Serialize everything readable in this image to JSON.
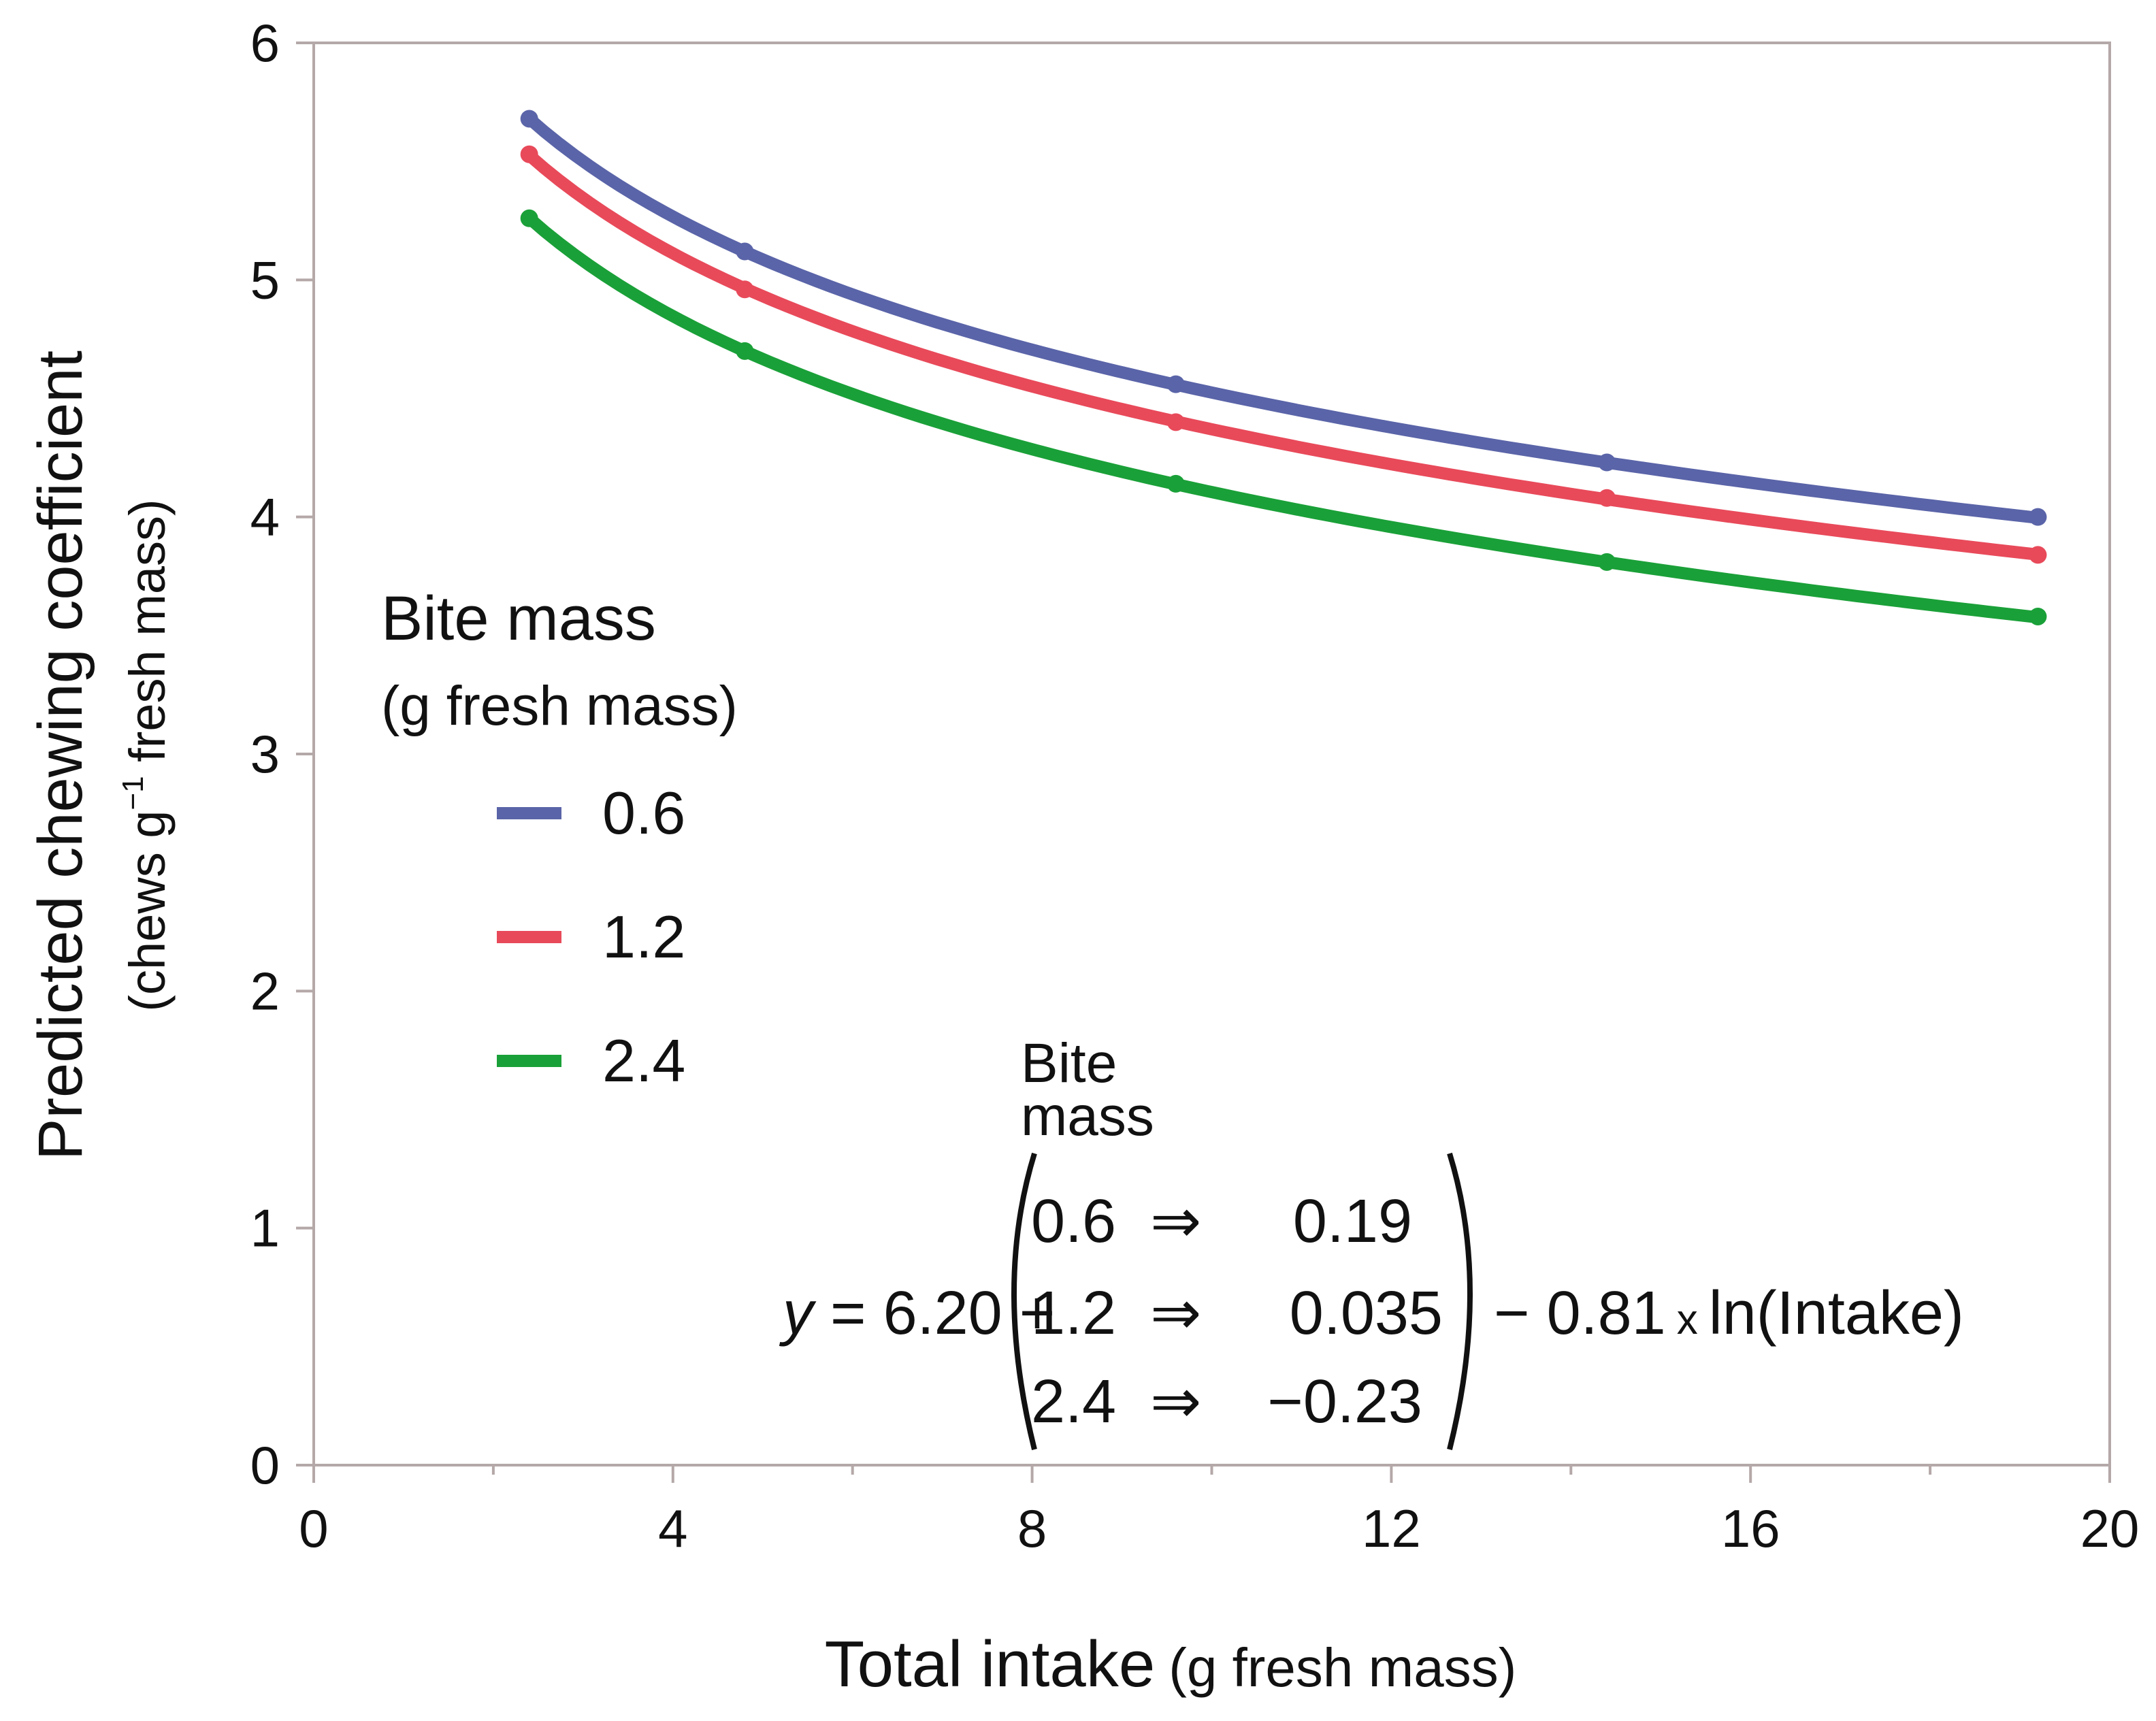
{
  "chart_data": {
    "type": "line",
    "title": "",
    "xlabel": "Total intake",
    "xlabel_unit": "(g fresh mass)",
    "ylabel": "Predicted chewing coefficient",
    "ylabel_unit_pre": "(chews g",
    "ylabel_unit_sup": "−1",
    "ylabel_unit_post": " fresh mass)",
    "xlim": [
      0,
      20
    ],
    "ylim": [
      0,
      6
    ],
    "xticks": [
      "0",
      "4",
      "8",
      "12",
      "16",
      "20"
    ],
    "xtick_values": [
      0,
      4,
      8,
      12,
      16,
      20
    ],
    "xminor_values": [
      2,
      6,
      10,
      14,
      18
    ],
    "yticks": [
      "0",
      "1",
      "2",
      "3",
      "4",
      "5",
      "6"
    ],
    "ytick_values": [
      0,
      1,
      2,
      3,
      4,
      5,
      6
    ],
    "grid": false,
    "legend": {
      "title_line1": "Bite mass",
      "title_line2": "(g fresh mass)",
      "placement": "center-left"
    },
    "x": [
      2.4,
      4.8,
      9.6,
      14.4,
      19.2
    ],
    "model": {
      "intercept": 6.2,
      "slope_ln": -0.81
    },
    "series": [
      {
        "name": "0.6",
        "color": "#5a64a8",
        "offset": 0.19,
        "values": [
          5.68,
          5.12,
          4.56,
          4.23,
          4.0
        ]
      },
      {
        "name": "1.2",
        "color": "#e84a5a",
        "offset": 0.035,
        "values": [
          5.53,
          4.96,
          4.4,
          4.08,
          3.84
        ]
      },
      {
        "name": "2.4",
        "color": "#1aa038",
        "offset": -0.23,
        "values": [
          5.26,
          4.7,
          4.14,
          3.81,
          3.58
        ]
      }
    ],
    "annotation": {
      "header_line1": "Bite",
      "header_line2": "mass",
      "y_var": "y",
      "lhs": " = 6.20 +",
      "rows": [
        {
          "key": "0.6",
          "arrow": "⇒",
          "value": "0.19"
        },
        {
          "key": "1.2",
          "arrow": "⇒",
          "value": "0.035"
        },
        {
          "key": "2.4",
          "arrow": "⇒",
          "value": "−0.23"
        }
      ],
      "rhs_a": "− 0.81",
      "rhs_times": "x",
      "rhs_b": "ln(Intake)"
    }
  }
}
